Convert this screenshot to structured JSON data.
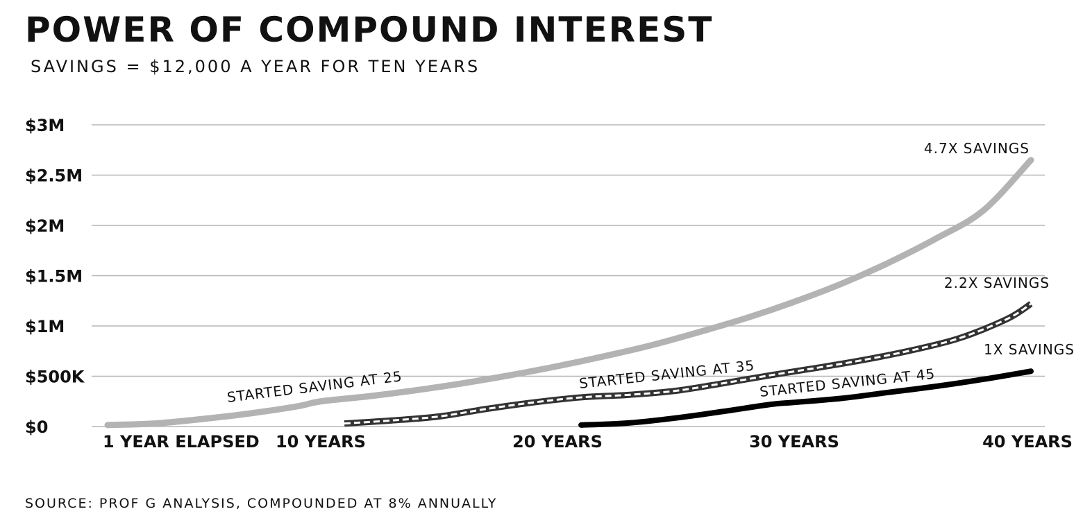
{
  "chart_data": {
    "type": "line",
    "title": "POWER OF COMPOUND INTEREST",
    "subtitle": "SAVINGS = $12,000 A YEAR FOR TEN YEARS",
    "source": "SOURCE: PROF G ANALYSIS, COMPOUNDED AT 8% ANNUALLY",
    "xlabel": "",
    "ylabel": "",
    "xlim": [
      0,
      40
    ],
    "ylim": [
      0,
      3000000
    ],
    "grid": true,
    "y_ticks": [
      {
        "value": 0,
        "label": "$0"
      },
      {
        "value": 500000,
        "label": "$500K"
      },
      {
        "value": 1000000,
        "label": "$1M"
      },
      {
        "value": 1500000,
        "label": "$1.5M"
      },
      {
        "value": 2000000,
        "label": "$2M"
      },
      {
        "value": 2500000,
        "label": "$2.5M"
      },
      {
        "value": 3000000,
        "label": "$3M"
      }
    ],
    "x_ticks": [
      {
        "value": 1,
        "label": "1 YEAR ELAPSED"
      },
      {
        "value": 10,
        "label": "10 YEARS"
      },
      {
        "value": 20,
        "label": "20 YEARS"
      },
      {
        "value": 30,
        "label": "30 YEARS"
      },
      {
        "value": 40,
        "label": "40 YEARS"
      }
    ],
    "series": [
      {
        "label": "STARTED SAVING AT 25",
        "end_label": "4.7X SAVINGS",
        "color": "#b3b3b3",
        "style": "solid",
        "x": [
          1,
          3,
          5,
          7,
          9,
          10,
          12,
          14,
          16,
          18,
          20,
          22,
          24,
          26,
          28,
          30,
          32,
          34,
          36,
          38,
          40
        ],
        "y": [
          15000,
          30000,
          75000,
          130000,
          200000,
          250000,
          300000,
          360000,
          430000,
          510000,
          600000,
          700000,
          810000,
          940000,
          1080000,
          1240000,
          1420000,
          1630000,
          1870000,
          2150000,
          2650000
        ]
      },
      {
        "label": "STARTED SAVING AT 35",
        "end_label": "2.2X SAVINGS",
        "color": "#333333",
        "style": "double-dashed",
        "x": [
          11,
          13,
          15,
          17,
          19,
          21,
          23,
          25,
          27,
          29,
          31,
          33,
          35,
          37,
          39,
          40
        ],
        "y": [
          30000,
          60000,
          100000,
          175000,
          240000,
          290000,
          315000,
          355000,
          430000,
          510000,
          585000,
          665000,
          760000,
          880000,
          1070000,
          1220000
        ]
      },
      {
        "label": "STARTED SAVING AT 45",
        "end_label": "1X SAVINGS",
        "color": "#000000",
        "style": "solid",
        "x": [
          21,
          23,
          25,
          27,
          29,
          30,
          32,
          34,
          36,
          38,
          40
        ],
        "y": [
          15000,
          35000,
          85000,
          150000,
          220000,
          240000,
          280000,
          340000,
          400000,
          470000,
          550000
        ]
      }
    ]
  }
}
